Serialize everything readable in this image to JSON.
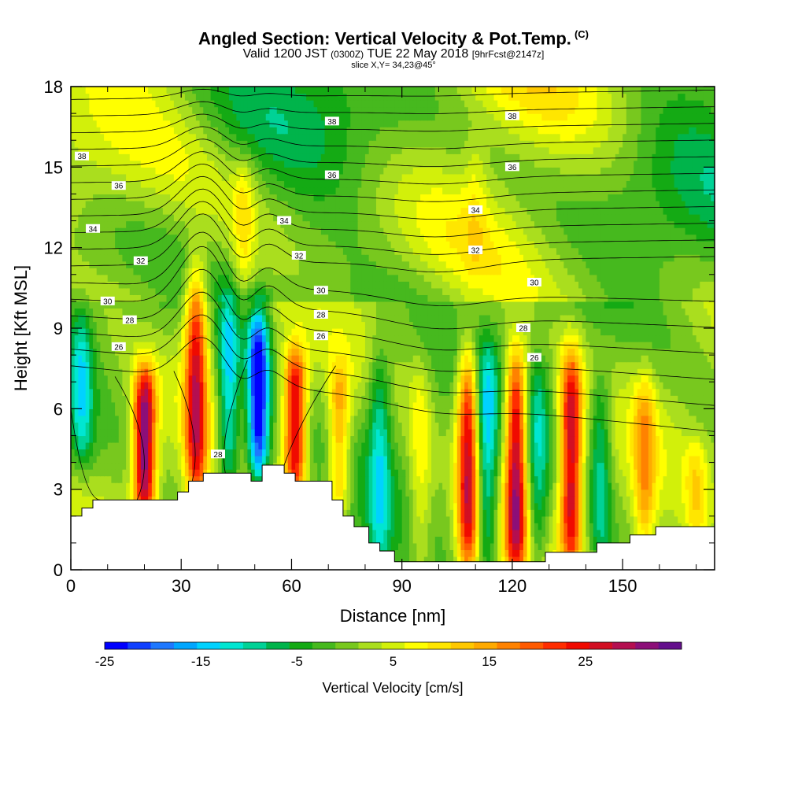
{
  "header": {
    "title": "Angled Section: Vertical Velocity & Pot.Temp.",
    "title_mark": "(C)",
    "valid_prefix": "Valid 1200 JST",
    "valid_utc": "(0300Z)",
    "valid_date": "TUE 22 May 2018",
    "forecast": "[9hrFcst@2147z]",
    "slice": "slice X,Y= 34,23@45°"
  },
  "chart_data": {
    "type": "heatmap",
    "xlabel": "Distance [nm]",
    "ylabel": "Height [Kft MSL]",
    "xlim": [
      0,
      175
    ],
    "ylim": [
      0,
      18
    ],
    "x_ticks": [
      0,
      30,
      60,
      90,
      120,
      150
    ],
    "y_ticks": [
      0,
      3,
      6,
      9,
      12,
      15,
      18
    ],
    "terrain": [
      [
        0,
        2.0
      ],
      [
        3,
        2.0
      ],
      [
        3,
        2.3
      ],
      [
        6,
        2.3
      ],
      [
        6,
        2.6
      ],
      [
        29,
        2.6
      ],
      [
        29,
        2.9
      ],
      [
        32,
        2.9
      ],
      [
        32,
        3.3
      ],
      [
        36,
        3.3
      ],
      [
        36,
        3.6
      ],
      [
        49,
        3.6
      ],
      [
        49,
        3.3
      ],
      [
        52,
        3.3
      ],
      [
        52,
        3.9
      ],
      [
        58,
        3.9
      ],
      [
        58,
        3.6
      ],
      [
        61,
        3.6
      ],
      [
        61,
        3.3
      ],
      [
        71,
        3.3
      ],
      [
        71,
        2.6
      ],
      [
        74,
        2.6
      ],
      [
        74,
        2.0
      ],
      [
        77,
        2.0
      ],
      [
        77,
        1.6
      ],
      [
        81,
        1.6
      ],
      [
        81,
        1.0
      ],
      [
        84,
        1.0
      ],
      [
        84,
        0.7
      ],
      [
        88,
        0.7
      ],
      [
        88,
        0.3
      ],
      [
        129,
        0.3
      ],
      [
        129,
        0.65
      ],
      [
        143,
        0.65
      ],
      [
        143,
        1.0
      ],
      [
        152,
        1.0
      ],
      [
        152,
        1.3
      ],
      [
        159,
        1.3
      ],
      [
        159,
        1.6
      ],
      [
        175,
        1.6
      ]
    ],
    "theta_labels": [
      {
        "text": "38",
        "x": 3,
        "y": 15.4
      },
      {
        "text": "38",
        "x": 71,
        "y": 16.7
      },
      {
        "text": "38",
        "x": 120,
        "y": 16.9
      },
      {
        "text": "36",
        "x": 13,
        "y": 14.3
      },
      {
        "text": "36",
        "x": 71,
        "y": 14.7
      },
      {
        "text": "36",
        "x": 120,
        "y": 15.0
      },
      {
        "text": "34",
        "x": 6,
        "y": 12.7
      },
      {
        "text": "34",
        "x": 58,
        "y": 13.0
      },
      {
        "text": "34",
        "x": 110,
        "y": 13.4
      },
      {
        "text": "32",
        "x": 19,
        "y": 11.5
      },
      {
        "text": "32",
        "x": 62,
        "y": 11.7
      },
      {
        "text": "32",
        "x": 110,
        "y": 11.9
      },
      {
        "text": "30",
        "x": 10,
        "y": 10.0
      },
      {
        "text": "30",
        "x": 68,
        "y": 10.4
      },
      {
        "text": "30",
        "x": 126,
        "y": 10.7
      },
      {
        "text": "28",
        "x": 16,
        "y": 9.3
      },
      {
        "text": "28",
        "x": 68,
        "y": 9.5
      },
      {
        "text": "28",
        "x": 123,
        "y": 9.0
      },
      {
        "text": "26",
        "x": 13,
        "y": 8.3
      },
      {
        "text": "26",
        "x": 68,
        "y": 8.7
      },
      {
        "text": "26",
        "x": 126,
        "y": 7.9
      },
      {
        "text": "28",
        "x": 40,
        "y": 4.3
      }
    ],
    "colorbar": {
      "title": "Vertical Velocity [cm/s]",
      "tick_labels": [
        "-25",
        "-15",
        "-5",
        "5",
        "15",
        "25"
      ],
      "tick_values": [
        -25,
        -15,
        -5,
        5,
        15,
        25
      ],
      "min": -25,
      "max": 33,
      "step": 2,
      "colors": [
        "#0000ff",
        "#1040ff",
        "#1e78ff",
        "#00a6ff",
        "#00d2ff",
        "#00e6d2",
        "#00d296",
        "#00b44b",
        "#14aa14",
        "#46b91e",
        "#78c81e",
        "#aade1e",
        "#d2f00a",
        "#ffff00",
        "#ffe600",
        "#ffc800",
        "#ffaa00",
        "#ff8200",
        "#ff5a00",
        "#ff2d00",
        "#f00a00",
        "#d20f23",
        "#b40f50",
        "#8c0f78",
        "#640f8c"
      ]
    },
    "features": [
      {
        "x": 3,
        "ymin": 4.5,
        "ymax": 9.0,
        "w": -9
      },
      {
        "x": 20,
        "ymin": 2.6,
        "ymax": 6.8,
        "w": 26
      },
      {
        "x": 34,
        "ymin": 3.0,
        "ymax": 10.5,
        "w": 20
      },
      {
        "x": 43,
        "ymin": 3.6,
        "ymax": 9.5,
        "w": -13
      },
      {
        "x": 51,
        "ymin": 4.0,
        "ymax": 9.0,
        "w": -23
      },
      {
        "x": 61,
        "ymin": 3.6,
        "ymax": 7.5,
        "w": 22
      },
      {
        "x": 73,
        "ymin": 2.6,
        "ymax": 7.0,
        "w": 12
      },
      {
        "x": 84,
        "ymin": 0.8,
        "ymax": 7.5,
        "w": -9
      },
      {
        "x": 95,
        "ymin": 0.5,
        "ymax": 7.0,
        "w": 6
      },
      {
        "x": 108,
        "ymin": 0.5,
        "ymax": 7.5,
        "w": 22
      },
      {
        "x": 113,
        "ymin": 0.5,
        "ymax": 7.5,
        "w": -11
      },
      {
        "x": 121,
        "ymin": 0.5,
        "ymax": 7.5,
        "w": 24
      },
      {
        "x": 127,
        "ymin": 0.5,
        "ymax": 7.0,
        "w": -8
      },
      {
        "x": 136,
        "ymin": 0.8,
        "ymax": 7.5,
        "w": 22
      },
      {
        "x": 144,
        "ymin": 1.0,
        "ymax": 6.5,
        "w": -9
      },
      {
        "x": 156,
        "ymin": 1.3,
        "ymax": 6.5,
        "w": 10
      },
      {
        "x": 170,
        "ymin": 1.6,
        "ymax": 4.0,
        "w": 6
      },
      {
        "x": 47,
        "ymin": 11.0,
        "ymax": 14.5,
        "w": 6
      },
      {
        "x": 110,
        "ymin": 12.0,
        "ymax": 15.5,
        "w": 3
      }
    ]
  }
}
